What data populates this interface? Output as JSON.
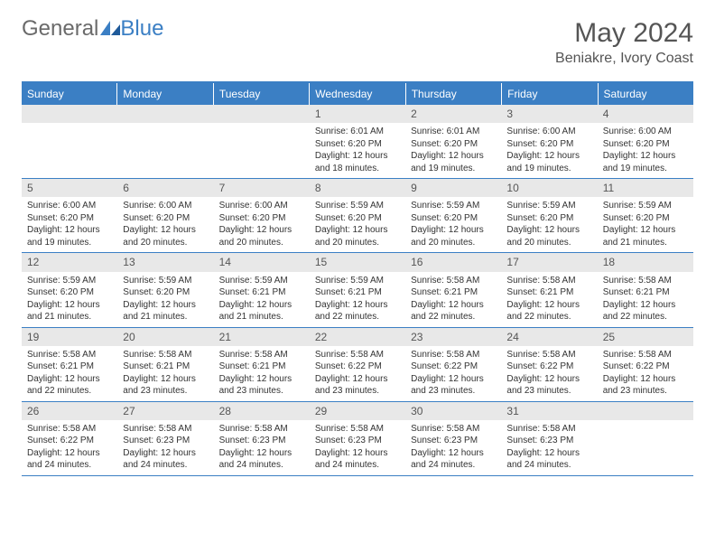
{
  "brand": {
    "text_general": "General",
    "text_blue": "Blue"
  },
  "title": "May 2024",
  "location": "Beniakre, Ivory Coast",
  "colors": {
    "accent": "#3b7fc4",
    "header_bg": "#3b7fc4",
    "header_text": "#ffffff",
    "daynum_bg": "#e8e8e8",
    "daynum_text": "#555555",
    "body_text": "#333333",
    "page_bg": "#ffffff",
    "title_text": "#555555"
  },
  "typography": {
    "title_fontsize": 30,
    "location_fontsize": 16,
    "weekday_fontsize": 12,
    "daynum_fontsize": 12,
    "cell_fontsize": 10
  },
  "weekdays": [
    "Sunday",
    "Monday",
    "Tuesday",
    "Wednesday",
    "Thursday",
    "Friday",
    "Saturday"
  ],
  "weeks": [
    [
      {
        "n": "",
        "sunrise": "",
        "sunset": "",
        "daylight": ""
      },
      {
        "n": "",
        "sunrise": "",
        "sunset": "",
        "daylight": ""
      },
      {
        "n": "",
        "sunrise": "",
        "sunset": "",
        "daylight": ""
      },
      {
        "n": "1",
        "sunrise": "Sunrise: 6:01 AM",
        "sunset": "Sunset: 6:20 PM",
        "daylight": "Daylight: 12 hours and 18 minutes."
      },
      {
        "n": "2",
        "sunrise": "Sunrise: 6:01 AM",
        "sunset": "Sunset: 6:20 PM",
        "daylight": "Daylight: 12 hours and 19 minutes."
      },
      {
        "n": "3",
        "sunrise": "Sunrise: 6:00 AM",
        "sunset": "Sunset: 6:20 PM",
        "daylight": "Daylight: 12 hours and 19 minutes."
      },
      {
        "n": "4",
        "sunrise": "Sunrise: 6:00 AM",
        "sunset": "Sunset: 6:20 PM",
        "daylight": "Daylight: 12 hours and 19 minutes."
      }
    ],
    [
      {
        "n": "5",
        "sunrise": "Sunrise: 6:00 AM",
        "sunset": "Sunset: 6:20 PM",
        "daylight": "Daylight: 12 hours and 19 minutes."
      },
      {
        "n": "6",
        "sunrise": "Sunrise: 6:00 AM",
        "sunset": "Sunset: 6:20 PM",
        "daylight": "Daylight: 12 hours and 20 minutes."
      },
      {
        "n": "7",
        "sunrise": "Sunrise: 6:00 AM",
        "sunset": "Sunset: 6:20 PM",
        "daylight": "Daylight: 12 hours and 20 minutes."
      },
      {
        "n": "8",
        "sunrise": "Sunrise: 5:59 AM",
        "sunset": "Sunset: 6:20 PM",
        "daylight": "Daylight: 12 hours and 20 minutes."
      },
      {
        "n": "9",
        "sunrise": "Sunrise: 5:59 AM",
        "sunset": "Sunset: 6:20 PM",
        "daylight": "Daylight: 12 hours and 20 minutes."
      },
      {
        "n": "10",
        "sunrise": "Sunrise: 5:59 AM",
        "sunset": "Sunset: 6:20 PM",
        "daylight": "Daylight: 12 hours and 20 minutes."
      },
      {
        "n": "11",
        "sunrise": "Sunrise: 5:59 AM",
        "sunset": "Sunset: 6:20 PM",
        "daylight": "Daylight: 12 hours and 21 minutes."
      }
    ],
    [
      {
        "n": "12",
        "sunrise": "Sunrise: 5:59 AM",
        "sunset": "Sunset: 6:20 PM",
        "daylight": "Daylight: 12 hours and 21 minutes."
      },
      {
        "n": "13",
        "sunrise": "Sunrise: 5:59 AM",
        "sunset": "Sunset: 6:20 PM",
        "daylight": "Daylight: 12 hours and 21 minutes."
      },
      {
        "n": "14",
        "sunrise": "Sunrise: 5:59 AM",
        "sunset": "Sunset: 6:21 PM",
        "daylight": "Daylight: 12 hours and 21 minutes."
      },
      {
        "n": "15",
        "sunrise": "Sunrise: 5:59 AM",
        "sunset": "Sunset: 6:21 PM",
        "daylight": "Daylight: 12 hours and 22 minutes."
      },
      {
        "n": "16",
        "sunrise": "Sunrise: 5:58 AM",
        "sunset": "Sunset: 6:21 PM",
        "daylight": "Daylight: 12 hours and 22 minutes."
      },
      {
        "n": "17",
        "sunrise": "Sunrise: 5:58 AM",
        "sunset": "Sunset: 6:21 PM",
        "daylight": "Daylight: 12 hours and 22 minutes."
      },
      {
        "n": "18",
        "sunrise": "Sunrise: 5:58 AM",
        "sunset": "Sunset: 6:21 PM",
        "daylight": "Daylight: 12 hours and 22 minutes."
      }
    ],
    [
      {
        "n": "19",
        "sunrise": "Sunrise: 5:58 AM",
        "sunset": "Sunset: 6:21 PM",
        "daylight": "Daylight: 12 hours and 22 minutes."
      },
      {
        "n": "20",
        "sunrise": "Sunrise: 5:58 AM",
        "sunset": "Sunset: 6:21 PM",
        "daylight": "Daylight: 12 hours and 23 minutes."
      },
      {
        "n": "21",
        "sunrise": "Sunrise: 5:58 AM",
        "sunset": "Sunset: 6:21 PM",
        "daylight": "Daylight: 12 hours and 23 minutes."
      },
      {
        "n": "22",
        "sunrise": "Sunrise: 5:58 AM",
        "sunset": "Sunset: 6:22 PM",
        "daylight": "Daylight: 12 hours and 23 minutes."
      },
      {
        "n": "23",
        "sunrise": "Sunrise: 5:58 AM",
        "sunset": "Sunset: 6:22 PM",
        "daylight": "Daylight: 12 hours and 23 minutes."
      },
      {
        "n": "24",
        "sunrise": "Sunrise: 5:58 AM",
        "sunset": "Sunset: 6:22 PM",
        "daylight": "Daylight: 12 hours and 23 minutes."
      },
      {
        "n": "25",
        "sunrise": "Sunrise: 5:58 AM",
        "sunset": "Sunset: 6:22 PM",
        "daylight": "Daylight: 12 hours and 23 minutes."
      }
    ],
    [
      {
        "n": "26",
        "sunrise": "Sunrise: 5:58 AM",
        "sunset": "Sunset: 6:22 PM",
        "daylight": "Daylight: 12 hours and 24 minutes."
      },
      {
        "n": "27",
        "sunrise": "Sunrise: 5:58 AM",
        "sunset": "Sunset: 6:23 PM",
        "daylight": "Daylight: 12 hours and 24 minutes."
      },
      {
        "n": "28",
        "sunrise": "Sunrise: 5:58 AM",
        "sunset": "Sunset: 6:23 PM",
        "daylight": "Daylight: 12 hours and 24 minutes."
      },
      {
        "n": "29",
        "sunrise": "Sunrise: 5:58 AM",
        "sunset": "Sunset: 6:23 PM",
        "daylight": "Daylight: 12 hours and 24 minutes."
      },
      {
        "n": "30",
        "sunrise": "Sunrise: 5:58 AM",
        "sunset": "Sunset: 6:23 PM",
        "daylight": "Daylight: 12 hours and 24 minutes."
      },
      {
        "n": "31",
        "sunrise": "Sunrise: 5:58 AM",
        "sunset": "Sunset: 6:23 PM",
        "daylight": "Daylight: 12 hours and 24 minutes."
      },
      {
        "n": "",
        "sunrise": "",
        "sunset": "",
        "daylight": ""
      }
    ]
  ]
}
